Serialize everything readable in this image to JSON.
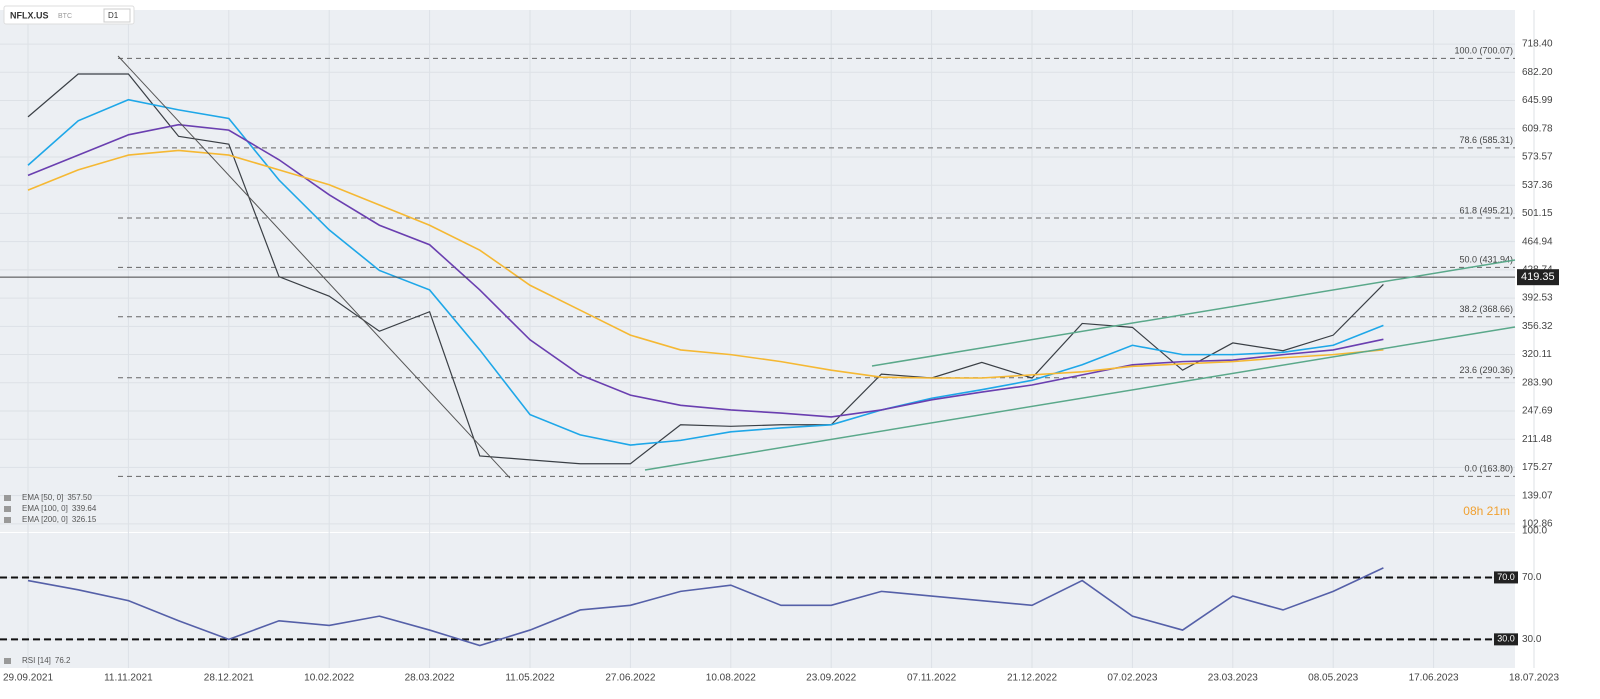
{
  "header": {
    "symbol": "NFLX.US",
    "currency": "BTC",
    "interval": "D1",
    "timer": "08h 21m"
  },
  "chart_data": [
    {
      "type": "line",
      "categories": [
        "29.09.2021",
        null,
        "11.11.2021",
        null,
        "28.12.2021",
        null,
        "10.02.2022",
        null,
        "28.03.2022",
        null,
        "11.05.2022",
        null,
        "27.06.2022",
        null,
        "10.08.2022",
        null,
        "23.09.2022",
        null,
        "07.11.2022",
        null,
        "21.12.2022",
        null,
        "07.02.2023",
        null,
        "23.03.2023",
        null,
        "08.05.2023",
        null,
        "17.06.2023",
        null,
        "18.07.2023"
      ],
      "series": [
        {
          "name": "NFLX.US",
          "color": "#3a3f45",
          "values": [
            625,
            680,
            680,
            600,
            590,
            420,
            395,
            350,
            375,
            190,
            185,
            180,
            180,
            230,
            228,
            230,
            230,
            295,
            290,
            310,
            290,
            360,
            355,
            300,
            335,
            325,
            345,
            410,
            null,
            null,
            null
          ]
        },
        {
          "name": "EMA [50, 0]",
          "last_value": "357.50",
          "color": "#1ea7e8",
          "values": [
            563,
            620,
            647,
            634,
            623,
            544,
            480,
            428,
            403,
            326,
            243,
            217,
            204,
            210,
            221,
            226,
            230,
            249,
            264,
            275,
            287,
            307,
            332,
            320,
            320,
            323,
            332,
            357.5,
            null,
            null,
            null
          ]
        },
        {
          "name": "EMA [100, 0]",
          "last_value": "339.64",
          "color": "#6a3fb0",
          "values": [
            550,
            576,
            602,
            615,
            608,
            570,
            525,
            486,
            461,
            403,
            339,
            294,
            268,
            255,
            249,
            245,
            240,
            249,
            262,
            272,
            281,
            294,
            307,
            311,
            313,
            320,
            326,
            339.64,
            null,
            null,
            null
          ]
        },
        {
          "name": "EMA [200, 0]",
          "last_value": "326.15",
          "color": "#f5b833",
          "values": [
            531,
            557,
            576,
            582,
            576,
            557,
            538,
            512,
            486,
            454,
            409,
            377,
            345,
            326,
            320,
            311,
            300,
            291,
            290,
            290,
            294,
            298,
            305,
            308,
            311,
            316,
            320,
            326.15,
            null,
            null,
            null
          ]
        }
      ],
      "last_price": {
        "value": 419.35,
        "label": "419.35"
      },
      "fib_levels": [
        {
          "value": 700.07,
          "label": "100.0 (700.07)"
        },
        {
          "value": 585.31,
          "label": "78.6 (585.31)"
        },
        {
          "value": 495.21,
          "label": "61.8 (495.21)"
        },
        {
          "value": 431.94,
          "label": "50.0 (431.94)"
        },
        {
          "value": 368.66,
          "label": "38.2 (368.66)"
        },
        {
          "value": 290.36,
          "label": "23.6 (290.36)"
        },
        {
          "value": 163.8,
          "label": "0.0 (163.80)"
        }
      ],
      "ylim": [
        95,
        757
      ],
      "yticks": [
        {
          "value": 718.4,
          "label": "718.40"
        },
        {
          "value": 682.2,
          "label": "682.20"
        },
        645.99,
        609.78,
        573.57,
        537.36,
        501.15,
        464.94,
        428.74,
        392.53,
        356.32,
        320.11,
        {
          "value": 283.9,
          "label": "283.90"
        },
        247.69,
        211.48,
        175.27,
        139.07,
        102.86
      ],
      "grid": true
    },
    {
      "type": "line",
      "series": [
        {
          "name": "RSI [14]",
          "last_value": "76.2",
          "color": "#5560a8",
          "values": [
            68,
            62,
            55,
            42,
            30,
            42,
            39,
            45,
            36,
            26,
            36,
            49,
            52,
            61,
            65,
            52,
            52,
            61,
            58,
            55,
            52,
            68,
            45,
            36,
            58,
            49,
            61,
            76.2,
            null,
            null,
            null
          ]
        }
      ],
      "ylim": [
        11.5,
        100
      ],
      "yticks": [
        {
          "value": 100,
          "label": "100.0"
        },
        {
          "value": 70,
          "label": "70.0"
        },
        {
          "value": 30,
          "label": "30.0"
        }
      ],
      "grid": true
    }
  ]
}
